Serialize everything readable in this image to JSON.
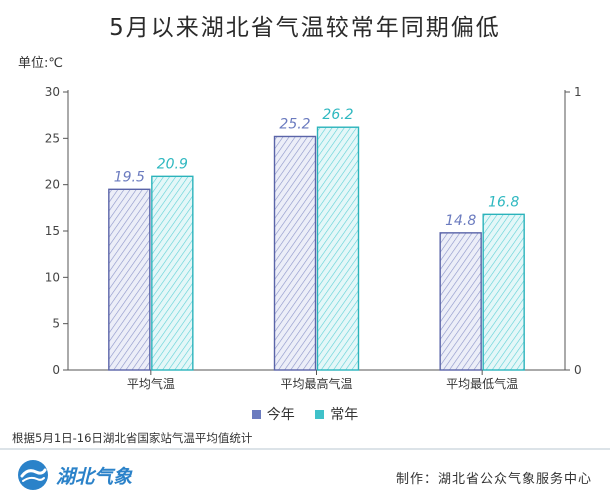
{
  "title": "5月以来湖北省气温较常年同期偏低",
  "unit_label": "单位:℃",
  "source": "根据5月1日-16日湖北省国家站气温平均值统计",
  "logo": {
    "text": "湖北气象"
  },
  "maker": "制作：湖北省公众气象服务中心",
  "colors": {
    "this_year": "#6b7bbf",
    "normal": "#3fc1c9"
  },
  "chart_data": {
    "type": "bar",
    "categories": [
      "平均气温",
      "平均最高气温",
      "平均最低气温"
    ],
    "series": [
      {
        "name": "今年",
        "values": [
          19.5,
          25.2,
          14.8
        ],
        "labels": [
          "19.5",
          "25.2",
          "14.8"
        ]
      },
      {
        "name": "常年",
        "values": [
          20.9,
          26.2,
          16.8
        ],
        "labels": [
          "20.9",
          "26.2",
          "16.8"
        ]
      }
    ],
    "ylim": [
      0,
      30
    ],
    "yticks": [
      "0",
      "5",
      "10",
      "15",
      "20",
      "25",
      "30"
    ],
    "y2ticks": [
      "0",
      "1"
    ],
    "legend_position": "bottom"
  }
}
